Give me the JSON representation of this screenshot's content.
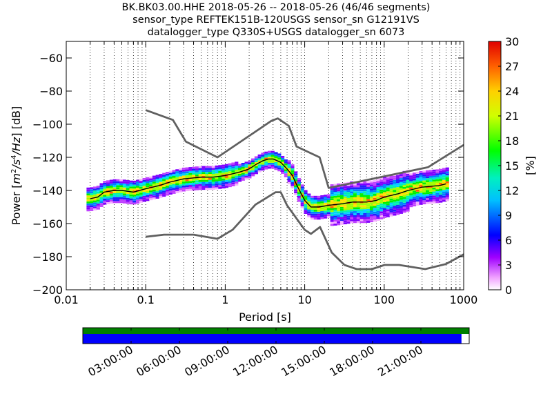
{
  "header": {
    "line1": "BK.BK03.00.HHE   2018-05-26 -- 2018-05-26  (46/46 segments)",
    "line2": "sensor_type REFTEK151B-120USGS sensor_sn G12191VS",
    "line3": "datalogger_type Q330S+USGS datalogger_sn 6073"
  },
  "colorbar": {
    "label": "[%]",
    "min": 0,
    "max": 30,
    "ticks": [
      "0",
      "3",
      "6",
      "9",
      "12",
      "15",
      "18",
      "21",
      "24",
      "27",
      "30"
    ]
  },
  "timeline": {
    "ticks": [
      "03:00:00",
      "06:00:00",
      "09:00:00",
      "12:00:00",
      "15:00:00",
      "18:00:00",
      "21:00:00"
    ],
    "data_coverage_fraction": 0.98,
    "gap_coverage_fraction": 1.0
  },
  "colors": {
    "noise_model": "#606060",
    "mean_line": "#000000",
    "coverage_bar": "#0000ff",
    "segment_bar": "#008000"
  },
  "chart_data": {
    "type": "heatmap",
    "title": "",
    "xlabel": "Period [s]",
    "ylabel": "Power [m²/s⁴/Hz] [dB]",
    "x_scale": "log",
    "xlim": [
      0.01,
      1000
    ],
    "ylim": [
      -200,
      -50
    ],
    "grid": "dotted vertical lines at periods",
    "x_ticks": [
      "0.01",
      "0.1",
      "1",
      "10",
      "100",
      "1000"
    ],
    "y_ticks": [
      "−200",
      "−180",
      "−160",
      "−140",
      "−120",
      "−100",
      "−80",
      "−60"
    ],
    "series": [
      {
        "kind": "high-noise-model",
        "x": [
          0.1,
          0.22,
          0.32,
          0.8,
          3.8,
          4.6,
          6.3,
          7.9,
          15.4,
          20,
          354.8,
          1000
        ],
        "y": [
          -91.5,
          -97.4,
          -110.5,
          -120,
          -98,
          -96.5,
          -101,
          -113.5,
          -120,
          -138.5,
          -126,
          -112.5
        ]
      },
      {
        "kind": "low-noise-model",
        "x": [
          0.1,
          0.17,
          0.4,
          0.8,
          1.24,
          2.4,
          4.3,
          5,
          6,
          10,
          12,
          15.6,
          21.9,
          31.6,
          45,
          70,
          101,
          154,
          328,
          600,
          1000
        ],
        "y": [
          -168,
          -166.7,
          -166.7,
          -169.2,
          -163.7,
          -148.6,
          -141.1,
          -141.1,
          -149,
          -163.8,
          -166.2,
          -162.1,
          -177.5,
          -185,
          -187.5,
          -187.5,
          -185,
          -185,
          -187.5,
          -184.4,
          -178.6
        ]
      },
      {
        "kind": "mean-psd",
        "x": [
          0.02,
          0.025,
          0.03,
          0.04,
          0.05,
          0.07,
          0.1,
          0.15,
          0.2,
          0.3,
          0.5,
          0.7,
          1,
          1.5,
          2,
          2.5,
          3,
          3.5,
          4,
          5,
          6,
          7,
          8,
          10,
          12,
          15,
          20,
          30,
          40,
          60,
          80,
          100,
          150,
          200,
          300,
          500,
          600
        ],
        "y": [
          -145,
          -144,
          -141,
          -140,
          -140,
          -141,
          -139,
          -137,
          -135,
          -133,
          -132,
          -132,
          -131,
          -129,
          -127,
          -124,
          -122,
          -121,
          -121,
          -123,
          -127,
          -131,
          -137,
          -146,
          -150,
          -150,
          -149,
          -148,
          -147,
          -147,
          -146,
          -144,
          -142,
          -140,
          -138,
          -137,
          -136
        ]
      }
    ]
  }
}
